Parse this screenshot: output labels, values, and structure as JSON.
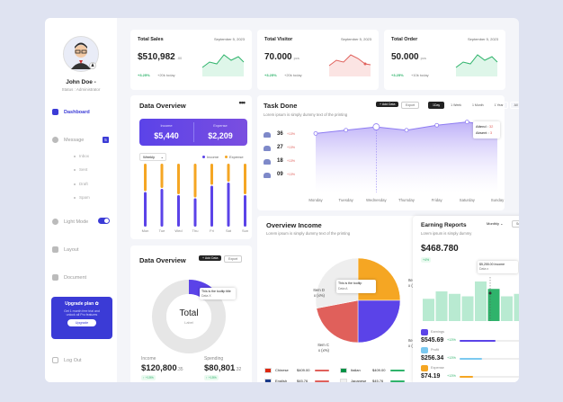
{
  "user": {
    "name": "John Doe -",
    "status": "Status : Administrator"
  },
  "nav": {
    "dashboard": "Dashboard",
    "message": "Message",
    "message_badge": "5",
    "inbox": "Inbox",
    "sent": "Sent",
    "draft": "Draft",
    "spam": "Spam",
    "light_mode": "Light Mode",
    "layout": "Layout",
    "document": "Document",
    "logout": "Log Out"
  },
  "upgrade": {
    "title": "Upgrade plan ✿",
    "text1": "Get 1 month free trial and",
    "text2": "unlock all Pro features",
    "button": "Upgrade"
  },
  "stats": [
    {
      "title": "Total Sales",
      "date": "September 5, 2023",
      "value": "$510,982",
      "suffix": ".00",
      "delta": "+3.25%",
      "sub": "+20k today"
    },
    {
      "title": "Total Visitor",
      "date": "September 5, 2023",
      "value": "70.000",
      "suffix": "pcs",
      "delta": "+3.25%",
      "sub": "+20k today"
    },
    {
      "title": "Total Order",
      "date": "September 5, 2023",
      "value": "50.000",
      "suffix": "pcs",
      "delta": "+3.25%",
      "sub": "+10k today"
    }
  ],
  "data_overview_1": {
    "title": "Data Overview",
    "income_label": "Income",
    "income_value": "$5,440",
    "expense_label": "Expense",
    "expense_value": "$2,209",
    "period": "Weekly",
    "legend_income": "Income",
    "legend_expense": "Expense",
    "days": [
      "Mon",
      "Tue",
      "Wed",
      "Thu",
      "Fri",
      "Sat",
      "Sun"
    ],
    "income": [
      0.55,
      0.6,
      0.5,
      0.45,
      0.65,
      0.7,
      0.5
    ],
    "expense": [
      0.45,
      0.4,
      0.5,
      0.55,
      0.35,
      0.3,
      0.5
    ]
  },
  "task": {
    "title": "Task Done",
    "subtitle": "Lorem ipsum is simply dummy text of the printing",
    "btn_add": "+ Add Data",
    "btn_export": "Export",
    "ranges": [
      "1Day",
      "1 Week",
      "1 Month",
      "1 Year",
      "All"
    ],
    "tooltip_attend_label": "Attend :",
    "tooltip_attend": "32",
    "tooltip_absent_label": "Absent :",
    "tooltip_absent": "3",
    "rows": [
      {
        "value": "36",
        "pct": "+13%"
      },
      {
        "value": "27",
        "pct": "+13%"
      },
      {
        "value": "18",
        "pct": "+13%"
      },
      {
        "value": "09",
        "pct": "+13%"
      }
    ],
    "days": [
      "Monday",
      "Tuesday",
      "Wednesday",
      "Thursday",
      "Friday",
      "Saturday",
      "Sunday"
    ],
    "values": [
      25,
      27,
      29,
      27,
      30,
      32,
      29
    ]
  },
  "data_overview_2": {
    "title": "Data Overview",
    "btn_add": "+ Add Data",
    "btn_export": "Export",
    "tooltip_text": "This is the tooltip title",
    "tooltip_sub": "Data X",
    "center_value": "Total",
    "center_label": "Label",
    "income_label": "Income",
    "income_value": "$120,800",
    "income_suffix": ".35",
    "income_delta": "↑ +15%",
    "spending_label": "Spending",
    "spending_value": "$80,801",
    "spending_suffix": ".32",
    "spending_delta": "↑ +15%"
  },
  "overview_income": {
    "title": "Overview Income",
    "subtitle": "Lorem ipsum is simply dummy text of the printing",
    "tooltip_text": "This is the tooltip",
    "tooltip_sub": "Data A",
    "slices": [
      {
        "label": "Item A",
        "sub": "x (x%)",
        "value": 25,
        "color": "#f5a623"
      },
      {
        "label": "Item B",
        "sub": "x (x%)",
        "value": 25,
        "color": "#5b43e8"
      },
      {
        "label": "Item C",
        "sub": "x (x%)",
        "value": 22,
        "color": "#e0605b"
      },
      {
        "label": "Item D",
        "sub": "x (x%)",
        "value": 28,
        "color": "#eeeeee"
      }
    ],
    "langs": [
      {
        "name": "Chinese",
        "value": "$409.00",
        "flag": "#de2910"
      },
      {
        "name": "Italian",
        "value": "$409.00",
        "flag": "#009246"
      },
      {
        "name": "English",
        "value": "$45.76",
        "flag": "#1a3a8a"
      },
      {
        "name": "Japanese",
        "value": "$45.76",
        "flag": "#f0f0f0"
      },
      {
        "name": "French",
        "value": "$409.00",
        "flag": "#0055a4"
      },
      {
        "name": "Russian",
        "value": "$409.00",
        "flag": "#1c57a7"
      }
    ]
  },
  "earning": {
    "title": "Earning Reports",
    "subtitle": "Lorem ipsum is simply dummy",
    "period": "Monthly",
    "btn": "See more",
    "value": "$468.780",
    "delta": "+4%",
    "tooltip_text": "$5,255.00 Income",
    "tooltip_sub": "Data x",
    "bars": [
      0.45,
      0.6,
      0.55,
      0.5,
      0.8,
      0.65,
      0.5,
      0.55,
      0.7
    ],
    "rows": [
      {
        "label": "Earnings",
        "value": "$545.69",
        "pct": "+13%"
      },
      {
        "label": "Profit",
        "value": "$256.34",
        "pct": "+13%"
      },
      {
        "label": "Expense",
        "value": "$74.19",
        "pct": "+13%"
      }
    ]
  }
}
